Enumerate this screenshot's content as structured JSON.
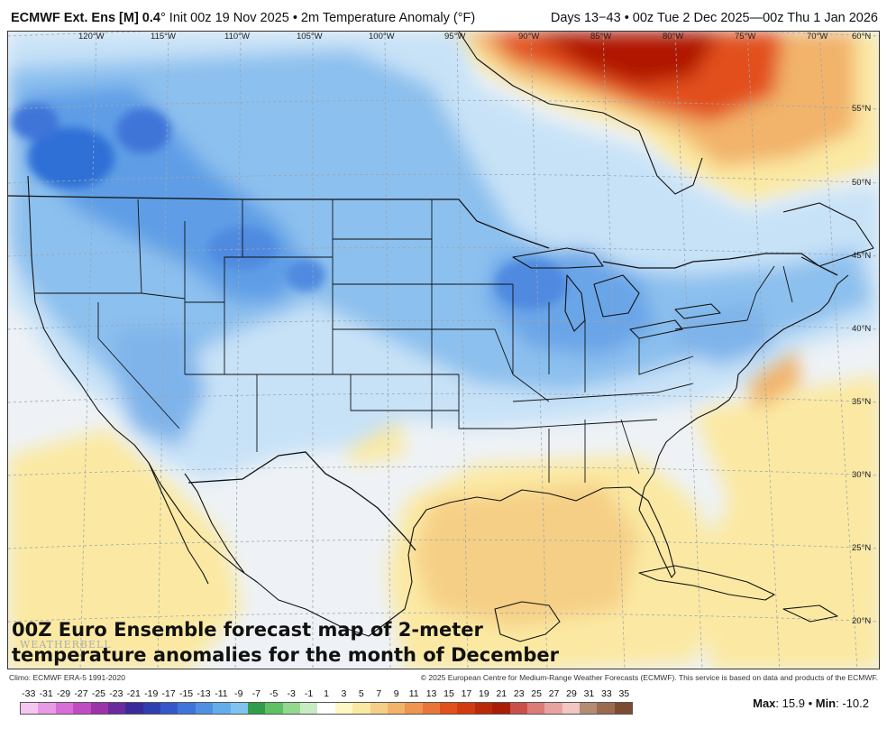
{
  "header": {
    "model": "ECMWF Ext. Ens [M] 0.4",
    "init": "° Init 00z 19 Nov 2025 • 2m Temperature Anomaly (°F)",
    "valid": "Days 13−43 • 00z Tue 2 Dec 2025—00z Thu 1 Jan 2026"
  },
  "map": {
    "longitudes": [
      "120°W",
      "115°W",
      "110°W",
      "105°W",
      "100°W",
      "95°W",
      "90°W",
      "85°W",
      "80°W",
      "75°W",
      "70°W"
    ],
    "latitudes": [
      "60°N",
      "55°N",
      "50°N",
      "45°N",
      "40°N",
      "35°N",
      "30°N",
      "25°N",
      "20°N"
    ],
    "colors": {
      "border": "#111111",
      "cold": "#2f6fd6",
      "cool": "#8cc0ee",
      "light_cool": "#c7e2f7",
      "neutral": "#f1f4f7",
      "warm": "#fbe9a3",
      "warmer": "#f6cf86",
      "hot": "#e2501c",
      "very_hot": "#b01806"
    }
  },
  "caption": {
    "line1": "00Z Euro Ensemble forecast map of 2-meter",
    "line2": "temperature anomalies for the month of December"
  },
  "watermark": "WEATHERBELL",
  "footer": {
    "climo": "Climo: ECMWF ERA-5 1991-2020",
    "copyright": "© 2025 European Centre for Medium-Range Weather Forecasts (ECMWF). This service is based on data and products of the ECMWF."
  },
  "scale": {
    "labels": [
      "-33",
      "-31",
      "-29",
      "-27",
      "-25",
      "-23",
      "-21",
      "-19",
      "-17",
      "-15",
      "-13",
      "-11",
      "-9",
      "-7",
      "-5",
      "-3",
      "-1",
      "1",
      "3",
      "5",
      "7",
      "9",
      "11",
      "13",
      "15",
      "17",
      "19",
      "21",
      "23",
      "25",
      "27",
      "29",
      "31",
      "33",
      "35"
    ],
    "colors": [
      "#f5c6f0",
      "#e89ae4",
      "#d86fd6",
      "#c04cc2",
      "#9b34a8",
      "#6b2a9e",
      "#3b2a9a",
      "#2f3fb0",
      "#3657c9",
      "#3f74d8",
      "#4f90e2",
      "#63aeea",
      "#7fc4ef",
      "#2f9e4a",
      "#5fc066",
      "#93d88f",
      "#c7ecc3",
      "#ffffff",
      "#fff7c4",
      "#fbe9a3",
      "#f6cf86",
      "#f2b36a",
      "#ee9550",
      "#e97539",
      "#e2501c",
      "#d23b10",
      "#bb2a08",
      "#a91d05",
      "#c9504a",
      "#dc7b77",
      "#e8a3a0",
      "#f2c6c3",
      "#b38c73",
      "#9b6b4f",
      "#7d4a32"
    ]
  },
  "stats": {
    "max_label": "Max",
    "max_value": "15.9",
    "min_label": "Min",
    "min_value": "-10.2"
  }
}
